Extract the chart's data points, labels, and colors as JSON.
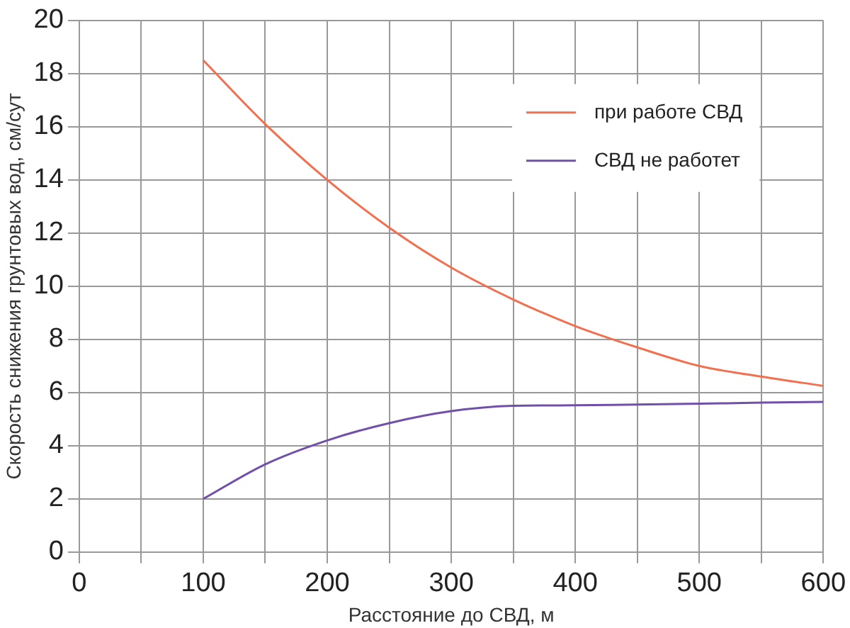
{
  "chart_data": {
    "type": "line",
    "xlabel": "Расстояние до СВД, м",
    "ylabel": "Скорость снижения грунтовых вод, см/сут",
    "x": [
      100,
      150,
      200,
      250,
      300,
      350,
      400,
      450,
      500,
      550,
      600
    ],
    "series": [
      {
        "name": "при работе СВД",
        "color": "#f07050",
        "values": [
          18.5,
          16.1,
          14.0,
          12.2,
          10.7,
          9.5,
          8.5,
          7.7,
          7.0,
          6.6,
          6.25
        ]
      },
      {
        "name": "СВД не работет",
        "color": "#7050a8",
        "values": [
          2.0,
          3.3,
          4.2,
          4.85,
          5.3,
          5.5,
          5.52,
          5.55,
          5.58,
          5.62,
          5.65
        ]
      }
    ],
    "xlim": [
      0,
      600
    ],
    "xticks": [
      0,
      {
        "value": 50,
        "label": null
      },
      100,
      {
        "value": 150,
        "label": null
      },
      200,
      {
        "value": 250,
        "label": null
      },
      300,
      {
        "value": 350,
        "label": null
      },
      400,
      {
        "value": 450,
        "label": null
      },
      500,
      {
        "value": 550,
        "label": null
      },
      600
    ],
    "ylim": [
      0,
      20
    ],
    "yticks": [
      0,
      2,
      4,
      6,
      8,
      10,
      12,
      14,
      16,
      18,
      20
    ],
    "grid": true,
    "legend": "top right",
    "marker": "none",
    "line_style": "solid"
  }
}
